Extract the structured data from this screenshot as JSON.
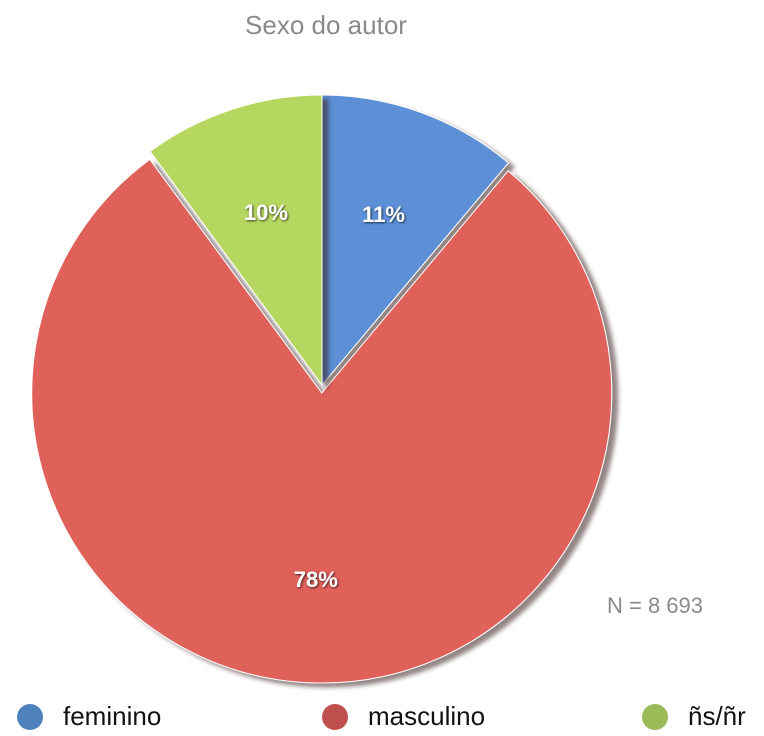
{
  "chart_data": {
    "type": "pie",
    "title": "Sexo do autor",
    "categories": [
      "feminino",
      "masculino",
      "ñs/ñr"
    ],
    "values": [
      11,
      78,
      10
    ],
    "value_labels": [
      "11%",
      "78%",
      "10%"
    ],
    "colors": [
      "#5b8fd6",
      "#e0605a",
      "#b5d65e"
    ],
    "legend_colors": [
      "#4f81bd",
      "#c0504d",
      "#9bbb59"
    ],
    "legend": "bottom",
    "annotation": "N = 8 693"
  }
}
